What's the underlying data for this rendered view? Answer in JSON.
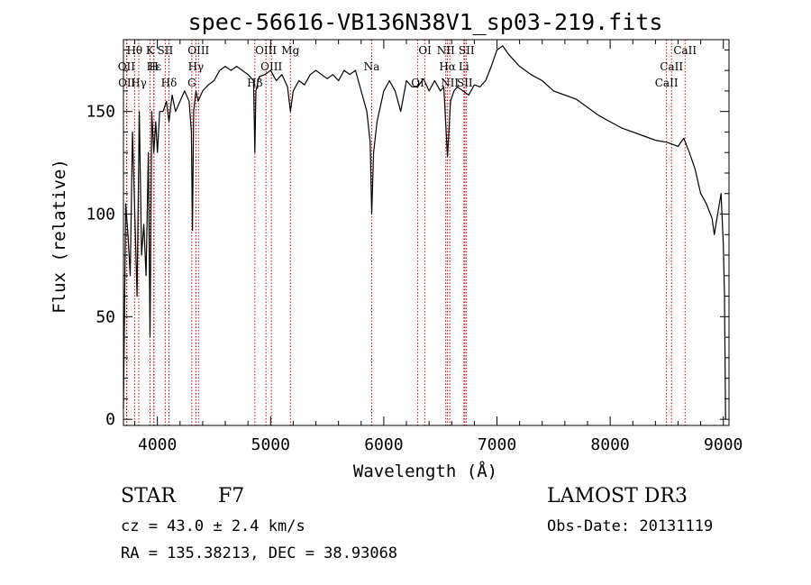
{
  "chart_data": {
    "type": "line",
    "title": "spec-56616-VB136N38V1_sp03-219.fits",
    "xlabel": "Wavelength (Å)",
    "ylabel": "Flux (relative)",
    "xlim": [
      3700,
      9050
    ],
    "ylim": [
      -3,
      185
    ],
    "xticks": [
      4000,
      5000,
      6000,
      7000,
      8000,
      9000
    ],
    "xtick_labels": [
      "4000",
      "5000",
      "6000",
      "7000",
      "8000",
      "9000"
    ],
    "yticks": [
      0,
      50,
      100,
      150
    ],
    "ytick_labels": [
      "0",
      "50",
      "100",
      "150"
    ],
    "series": [
      {
        "name": "flux",
        "color": "#000000",
        "x": [
          3700,
          3720,
          3740,
          3760,
          3780,
          3800,
          3820,
          3840,
          3860,
          3880,
          3900,
          3920,
          3935,
          3950,
          3968,
          3985,
          4000,
          4020,
          4050,
          4080,
          4102,
          4130,
          4160,
          4200,
          4240,
          4280,
          4300,
          4310,
          4320,
          4340,
          4360,
          4400,
          4450,
          4500,
          4550,
          4600,
          4650,
          4700,
          4750,
          4800,
          4850,
          4861,
          4870,
          4900,
          4950,
          5000,
          5050,
          5100,
          5150,
          5175,
          5200,
          5250,
          5300,
          5350,
          5400,
          5450,
          5500,
          5550,
          5600,
          5650,
          5700,
          5750,
          5800,
          5850,
          5880,
          5893,
          5910,
          5940,
          5980,
          6000,
          6050,
          6100,
          6150,
          6200,
          6250,
          6300,
          6350,
          6400,
          6450,
          6500,
          6530,
          6563,
          6590,
          6620,
          6650,
          6700,
          6750,
          6800,
          6850,
          6900,
          6950,
          7000,
          7050,
          7100,
          7150,
          7200,
          7300,
          7400,
          7500,
          7600,
          7700,
          7800,
          7900,
          8000,
          8100,
          8200,
          8300,
          8400,
          8500,
          8550,
          8600,
          8650,
          8700,
          8750,
          8800,
          8850,
          8900,
          8920,
          8950,
          8980,
          9000,
          9010,
          9020
        ],
        "y": [
          5,
          105,
          90,
          70,
          140,
          100,
          60,
          150,
          80,
          95,
          70,
          130,
          40,
          150,
          130,
          145,
          130,
          150,
          150,
          155,
          145,
          158,
          150,
          155,
          160,
          155,
          140,
          92,
          150,
          160,
          155,
          160,
          163,
          165,
          170,
          172,
          170,
          172,
          170,
          168,
          165,
          130,
          160,
          167,
          168,
          170,
          165,
          168,
          162,
          150,
          160,
          165,
          163,
          168,
          170,
          168,
          166,
          168,
          165,
          170,
          168,
          170,
          160,
          150,
          135,
          100,
          130,
          145,
          155,
          160,
          165,
          160,
          150,
          165,
          162,
          162,
          166,
          160,
          165,
          160,
          162,
          128,
          155,
          160,
          162,
          160,
          158,
          163,
          162,
          165,
          172,
          180,
          182,
          178,
          175,
          172,
          168,
          165,
          160,
          158,
          156,
          152,
          148,
          145,
          142,
          140,
          138,
          136,
          135,
          134,
          133,
          137,
          130,
          122,
          110,
          105,
          98,
          90,
          100,
          110,
          85,
          60,
          0
        ]
      }
    ],
    "lines": [
      {
        "label": "Hθ",
        "x": 3798
      },
      {
        "label": "OII",
        "x": 3727
      },
      {
        "label": "OII",
        "x": 3730
      },
      {
        "label": "K",
        "x": 3934
      },
      {
        "label": "Hε",
        "x": 3970
      },
      {
        "label": "Hγ",
        "x": 3835
      },
      {
        "label": "SII",
        "x": 4069
      },
      {
        "label": "H",
        "x": 3968
      },
      {
        "label": "Hδ",
        "x": 4102
      },
      {
        "label": "OIII",
        "x": 4363
      },
      {
        "label": "Hγ",
        "x": 4340
      },
      {
        "label": "G",
        "x": 4304
      },
      {
        "label": "OIII",
        "x": 4959
      },
      {
        "label": "OIII",
        "x": 5007
      },
      {
        "label": "Hβ",
        "x": 4861
      },
      {
        "label": "Mg",
        "x": 5175
      },
      {
        "label": "Na",
        "x": 5893
      },
      {
        "label": "OI",
        "x": 6300
      },
      {
        "label": "OI",
        "x": 6364
      },
      {
        "label": "Hα",
        "x": 6563
      },
      {
        "label": "SII",
        "x": 6716
      },
      {
        "label": "NII",
        "x": 6548
      },
      {
        "label": "Li",
        "x": 6708
      },
      {
        "label": "NII",
        "x": 6583
      },
      {
        "label": "SII",
        "x": 6731
      },
      {
        "label": "CaII",
        "x": 8542
      },
      {
        "label": "CaII",
        "x": 8498
      },
      {
        "label": "CaII",
        "x": 8662
      }
    ]
  },
  "info": {
    "class": "STAR",
    "subclass": "F7",
    "survey": "LAMOST DR3",
    "cz": "cz = 43.0 ± 2.4 km/s",
    "obs_date": "Obs-Date: 20131119",
    "coords": "RA = 135.38213, DEC =  38.93068"
  }
}
